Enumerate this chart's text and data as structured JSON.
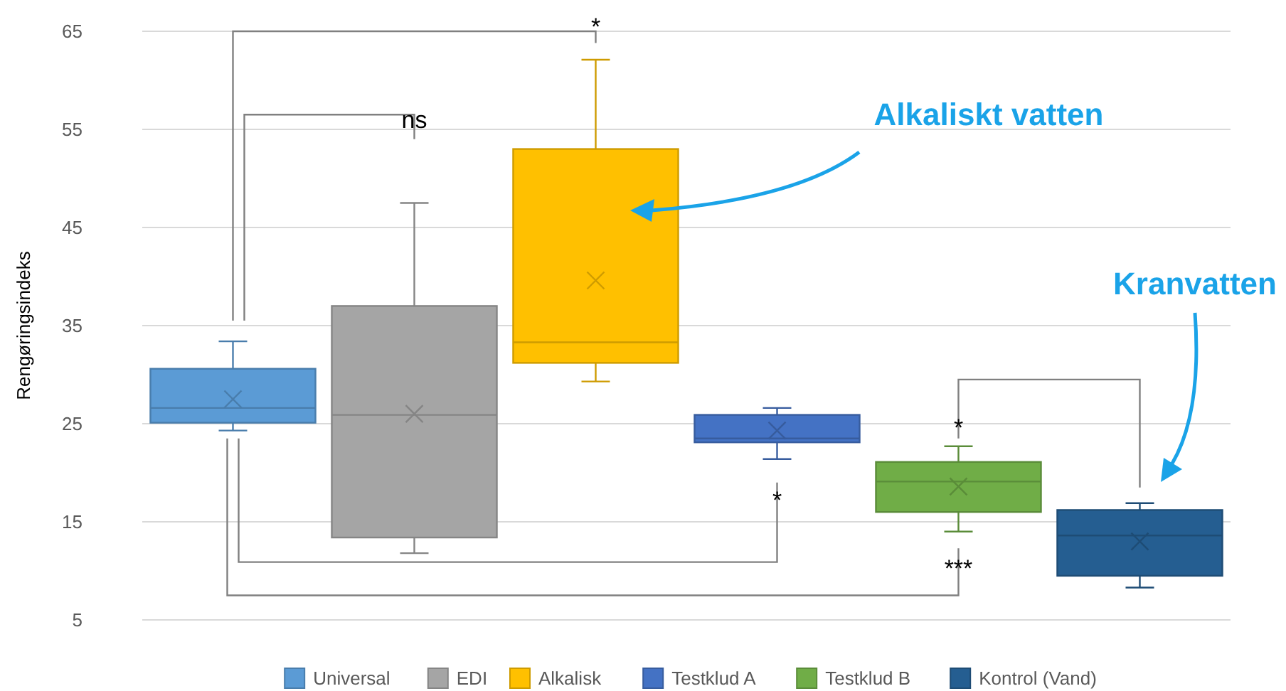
{
  "chart_data": {
    "type": "box",
    "ylabel": "Rengøringsindeks",
    "categories": [
      null,
      null,
      null,
      null,
      null,
      null
    ],
    "series": [
      {
        "name": "Universal",
        "color": "#5b9bd5",
        "boxes": [
          {
            "low": 24.3,
            "q1": 25.1,
            "median": 26.6,
            "q3": 30.6,
            "high": 33.4,
            "mean": 27.5
          },
          null,
          null,
          null,
          null,
          null
        ]
      },
      {
        "name": "EDI",
        "color": "#a5a5a5",
        "boxes": [
          null,
          {
            "low": 11.8,
            "q1": 13.4,
            "median": 25.9,
            "q3": 37.0,
            "high": 47.5,
            "mean": 26.0
          },
          null,
          null,
          null,
          null
        ]
      },
      {
        "name": "Alkalisk",
        "color": "#ffc000",
        "boxes": [
          null,
          null,
          {
            "low": 29.3,
            "q1": 31.2,
            "median": 33.3,
            "q3": 53.0,
            "high": 62.1,
            "mean": 39.6
          },
          null,
          null,
          null
        ]
      },
      {
        "name": "Testklud A",
        "color": "#4472c4",
        "boxes": [
          null,
          null,
          null,
          {
            "low": 21.4,
            "q1": 23.1,
            "median": 23.5,
            "q3": 25.9,
            "high": 26.6,
            "mean": 24.3
          },
          null,
          null
        ]
      },
      {
        "name": "Testklud B",
        "color": "#70ad47",
        "boxes": [
          null,
          null,
          null,
          null,
          {
            "low": 14.0,
            "q1": 16.0,
            "median": 19.1,
            "q3": 21.1,
            "high": 22.7,
            "mean": 18.6
          },
          null
        ]
      },
      {
        "name": "Kontrol (Vand)",
        "color": "#255e91",
        "boxes": [
          null,
          null,
          null,
          null,
          null,
          {
            "low": 8.3,
            "q1": 9.5,
            "median": 13.6,
            "q3": 16.2,
            "high": 16.9,
            "mean": 13.0
          }
        ]
      }
    ],
    "ylim": [
      5,
      65
    ],
    "yticks": [
      5,
      15,
      25,
      35,
      45,
      55,
      65
    ],
    "grid": "y",
    "legend": "bottom",
    "tick_labels": "y",
    "annotations": [
      "*",
      "ns",
      "*",
      "***",
      "*",
      "Alkaliskt vatten",
      "Kranvatten"
    ]
  }
}
